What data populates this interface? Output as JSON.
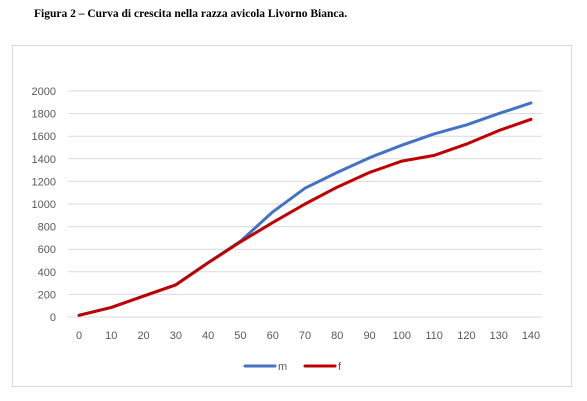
{
  "caption": "Figura 2 – Curva di crescita nella razza avicola Livorno Bianca.",
  "chart_data": {
    "type": "line",
    "title": "",
    "xlabel": "",
    "ylabel": "",
    "x": [
      0,
      10,
      20,
      30,
      40,
      50,
      60,
      70,
      80,
      90,
      100,
      110,
      120,
      130,
      140
    ],
    "x_tick_labels": [
      "0",
      "10",
      "20",
      "30",
      "40",
      "50",
      "60",
      "70",
      "80",
      "90",
      "100",
      "110",
      "120",
      "130",
      "140"
    ],
    "y_tick_labels": [
      "0",
      "200",
      "400",
      "600",
      "800",
      "1000",
      "1200",
      "1400",
      "1600",
      "1800",
      "2000"
    ],
    "y_ticks": [
      0,
      200,
      400,
      600,
      800,
      1000,
      1200,
      1400,
      1600,
      1800,
      2000
    ],
    "ylim": [
      0,
      2000
    ],
    "grid": "horizontal",
    "legend_position": "bottom",
    "series": [
      {
        "name": "m",
        "color": "#4472c4",
        "values": [
          15,
          85,
          185,
          285,
          480,
          670,
          930,
          1140,
          1280,
          1410,
          1520,
          1620,
          1700,
          1800,
          1895
        ]
      },
      {
        "name": "f",
        "color": "#c00000",
        "values": [
          15,
          85,
          185,
          285,
          480,
          665,
          835,
          1000,
          1150,
          1280,
          1380,
          1430,
          1530,
          1650,
          1750
        ]
      }
    ]
  }
}
